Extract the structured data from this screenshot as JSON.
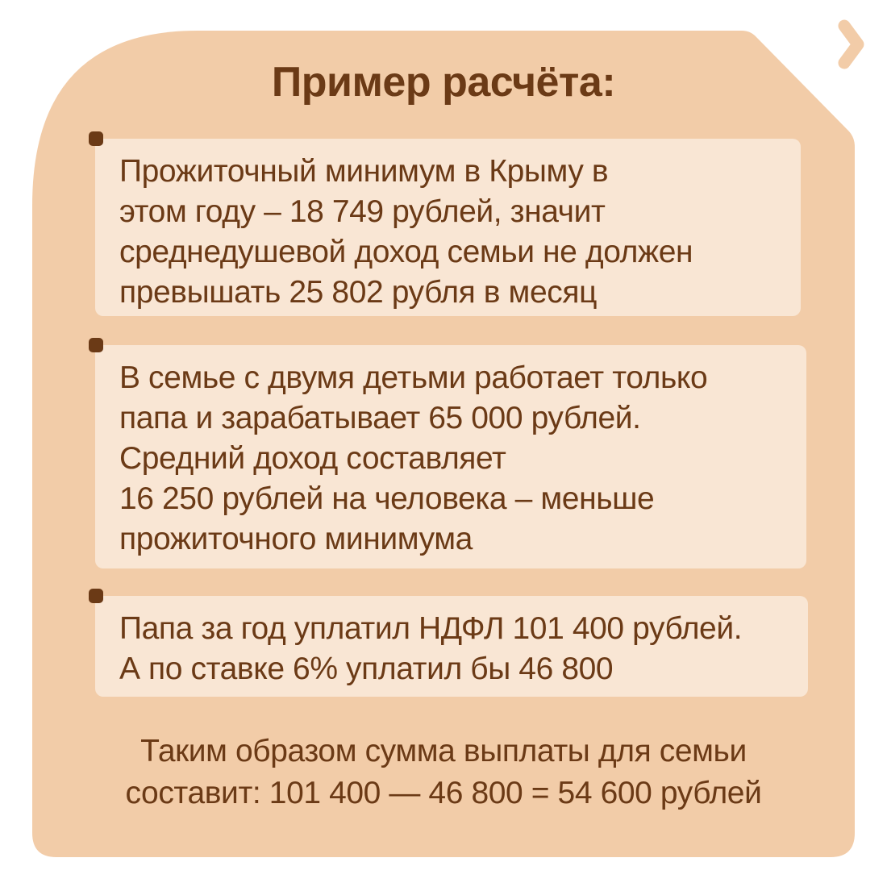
{
  "colors": {
    "card": "#f2cca8",
    "box": "#f9e6d4",
    "text": "#6b3a16",
    "chevron": "#f2cca8"
  },
  "nav": {
    "next_icon": "chevron-right-icon"
  },
  "title": "Пример расчёта:",
  "items": [
    {
      "lines": [
        "Прожиточный минимум в Крыму в",
        "этом году – 18 749 рублей, значит",
        "среднедушевой доход семьи не должен",
        "превышать 25 802 рубля в месяц"
      ]
    },
    {
      "lines": [
        "В семье с двумя детьми работает только",
        "папа и зарабатывает 65 000 рублей.",
        "Средний доход составляет",
        "16 250 рублей на человека – меньше",
        "прожиточного минимума"
      ]
    },
    {
      "lines": [
        "Папа за год уплатил НДФЛ 101 400 рублей.",
        "А по ставке 6% уплатил бы 46 800"
      ]
    }
  ],
  "summary": {
    "lines": [
      "Таким образом сумма выплаты для семьи",
      "составит: 101 400 — 46 800 = 54 600 рублей"
    ]
  }
}
